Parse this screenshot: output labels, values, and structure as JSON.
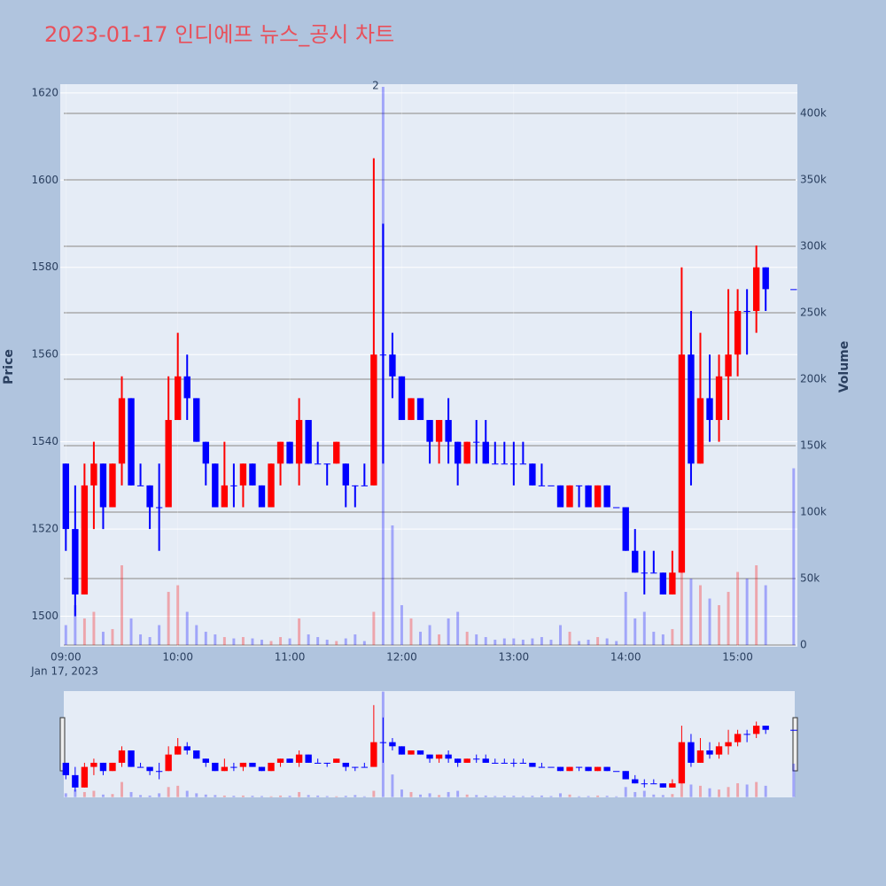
{
  "chart_data": {
    "type": "candlestick",
    "title": "2023-01-17 인디에프 뉴스_공시 차트",
    "y_label": "Price",
    "y2_label": "Volume",
    "x_date_label": "Jan 17, 2023",
    "increasing_color": "#ff0000",
    "decreasing_color": "#0000ff",
    "annotations": [
      {
        "text": "2",
        "x": "2023-01-17 11:46"
      }
    ],
    "xlim": [
      "2023-01-17 08:57",
      "2023-01-17 15:32"
    ],
    "xticks": [
      {
        "value": "2023-01-17 09:00",
        "label": "09:00"
      },
      {
        "value": "2023-01-17 10:00",
        "label": "10:00"
      },
      {
        "value": "2023-01-17 11:00",
        "label": "11:00"
      },
      {
        "value": "2023-01-17 12:00",
        "label": "12:00"
      },
      {
        "value": "2023-01-17 13:00",
        "label": "13:00"
      },
      {
        "value": "2023-01-17 14:00",
        "label": "14:00"
      },
      {
        "value": "2023-01-17 15:00",
        "label": "15:00"
      }
    ],
    "ylim": [
      1493,
      1622
    ],
    "yticks": [
      1500,
      1520,
      1540,
      1560,
      1580,
      1600,
      1620
    ],
    "y2lim": [
      -1300,
      422000
    ],
    "y2ticks": [
      0,
      {
        "value": 50000,
        "label": "50k"
      },
      {
        "value": 100000,
        "label": "100k"
      },
      {
        "value": 150000,
        "label": "150k"
      },
      {
        "value": 200000,
        "label": "200k"
      },
      {
        "value": 250000,
        "label": "250k"
      },
      {
        "value": 300000,
        "label": "300k"
      },
      {
        "value": 350000,
        "label": "350k"
      },
      {
        "value": 400000,
        "label": "400k"
      }
    ],
    "x": [
      "2023-01-17 09:00",
      "2023-01-17 09:05",
      "2023-01-17 09:10",
      "2023-01-17 09:15",
      "2023-01-17 09:20",
      "2023-01-17 09:25",
      "2023-01-17 09:30",
      "2023-01-17 09:35",
      "2023-01-17 09:40",
      "2023-01-17 09:45",
      "2023-01-17 09:50",
      "2023-01-17 09:55",
      "2023-01-17 10:00",
      "2023-01-17 10:05",
      "2023-01-17 10:10",
      "2023-01-17 10:15",
      "2023-01-17 10:20",
      "2023-01-17 10:25",
      "2023-01-17 10:30",
      "2023-01-17 10:35",
      "2023-01-17 10:40",
      "2023-01-17 10:45",
      "2023-01-17 10:50",
      "2023-01-17 10:55",
      "2023-01-17 11:00",
      "2023-01-17 11:05",
      "2023-01-17 11:10",
      "2023-01-17 11:15",
      "2023-01-17 11:20",
      "2023-01-17 11:25",
      "2023-01-17 11:30",
      "2023-01-17 11:35",
      "2023-01-17 11:40",
      "2023-01-17 11:45",
      "2023-01-17 11:50",
      "2023-01-17 11:55",
      "2023-01-17 12:00",
      "2023-01-17 12:05",
      "2023-01-17 12:10",
      "2023-01-17 12:15",
      "2023-01-17 12:20",
      "2023-01-17 12:25",
      "2023-01-17 12:30",
      "2023-01-17 12:35",
      "2023-01-17 12:40",
      "2023-01-17 12:45",
      "2023-01-17 12:50",
      "2023-01-17 12:55",
      "2023-01-17 13:00",
      "2023-01-17 13:05",
      "2023-01-17 13:10",
      "2023-01-17 13:15",
      "2023-01-17 13:20",
      "2023-01-17 13:25",
      "2023-01-17 13:30",
      "2023-01-17 13:35",
      "2023-01-17 13:40",
      "2023-01-17 13:45",
      "2023-01-17 13:50",
      "2023-01-17 13:55",
      "2023-01-17 14:00",
      "2023-01-17 14:05",
      "2023-01-17 14:10",
      "2023-01-17 14:15",
      "2023-01-17 14:20",
      "2023-01-17 14:25",
      "2023-01-17 14:30",
      "2023-01-17 14:35",
      "2023-01-17 14:40",
      "2023-01-17 14:45",
      "2023-01-17 14:50",
      "2023-01-17 14:55",
      "2023-01-17 15:00",
      "2023-01-17 15:05",
      "2023-01-17 15:10",
      "2023-01-17 15:15",
      "2023-01-17 15:30"
    ],
    "open": [
      1535,
      1520,
      1505,
      1530,
      1535,
      1525,
      1535,
      1550,
      1530,
      1530,
      1525,
      1525,
      1545,
      1555,
      1550,
      1540,
      1535,
      1525,
      1530,
      1530,
      1535,
      1530,
      1525,
      1535,
      1540,
      1535,
      1545,
      1535,
      1535,
      1535,
      1535,
      1530,
      1530,
      1530,
      1560,
      1560,
      1555,
      1545,
      1550,
      1545,
      1540,
      1545,
      1540,
      1535,
      1540,
      1540,
      1535,
      1535,
      1535,
      1535,
      1535,
      1530,
      1530,
      1530,
      1525,
      1530,
      1530,
      1525,
      1530,
      1525,
      1525,
      1515,
      1510,
      1510,
      1510,
      1505,
      1510,
      1560,
      1535,
      1550,
      1545,
      1555,
      1560,
      1570,
      1570,
      1580,
      1575
    ],
    "high": [
      1535,
      1530,
      1535,
      1540,
      1535,
      1535,
      1555,
      1550,
      1535,
      1530,
      1535,
      1555,
      1565,
      1560,
      1550,
      1540,
      1535,
      1540,
      1535,
      1535,
      1535,
      1530,
      1535,
      1540,
      1540,
      1550,
      1545,
      1540,
      1535,
      1540,
      1535,
      1530,
      1535,
      1605,
      1590,
      1565,
      1555,
      1550,
      1550,
      1545,
      1545,
      1550,
      1540,
      1540,
      1545,
      1545,
      1540,
      1540,
      1540,
      1540,
      1535,
      1535,
      1530,
      1530,
      1530,
      1530,
      1530,
      1530,
      1530,
      1525,
      1525,
      1520,
      1515,
      1515,
      1510,
      1515,
      1580,
      1570,
      1565,
      1560,
      1560,
      1575,
      1575,
      1575,
      1585,
      1580,
      1575
    ],
    "low": [
      1515,
      1500,
      1505,
      1520,
      1520,
      1525,
      1530,
      1530,
      1530,
      1520,
      1515,
      1525,
      1545,
      1545,
      1540,
      1530,
      1525,
      1525,
      1525,
      1525,
      1530,
      1525,
      1525,
      1530,
      1535,
      1530,
      1535,
      1535,
      1530,
      1535,
      1525,
      1525,
      1530,
      1530,
      1535,
      1550,
      1545,
      1545,
      1545,
      1535,
      1535,
      1535,
      1530,
      1535,
      1535,
      1535,
      1535,
      1535,
      1530,
      1535,
      1530,
      1530,
      1530,
      1525,
      1525,
      1525,
      1525,
      1525,
      1525,
      1525,
      1515,
      1510,
      1505,
      1510,
      1505,
      1505,
      1510,
      1530,
      1535,
      1540,
      1540,
      1545,
      1555,
      1560,
      1565,
      1570,
      1575
    ],
    "close": [
      1520,
      1505,
      1530,
      1535,
      1525,
      1535,
      1550,
      1530,
      1530,
      1525,
      1525,
      1545,
      1555,
      1550,
      1540,
      1535,
      1525,
      1530,
      1530,
      1535,
      1530,
      1525,
      1535,
      1540,
      1535,
      1545,
      1535,
      1535,
      1535,
      1540,
      1530,
      1530,
      1530,
      1560,
      1560,
      1555,
      1545,
      1550,
      1545,
      1540,
      1545,
      1540,
      1535,
      1540,
      1540,
      1535,
      1535,
      1535,
      1535,
      1535,
      1530,
      1530,
      1530,
      1525,
      1530,
      1530,
      1525,
      1530,
      1525,
      1525,
      1515,
      1510,
      1510,
      1510,
      1505,
      1510,
      1560,
      1535,
      1550,
      1545,
      1555,
      1560,
      1570,
      1570,
      1580,
      1575,
      1575
    ],
    "volume": [
      15000,
      30000,
      20000,
      25000,
      10000,
      12000,
      60000,
      20000,
      8000,
      6000,
      15000,
      40000,
      45000,
      25000,
      15000,
      10000,
      8000,
      6000,
      5000,
      6000,
      5000,
      4000,
      3000,
      6000,
      5000,
      20000,
      8000,
      6000,
      4000,
      3000,
      5000,
      8000,
      3000,
      25000,
      420000,
      90000,
      30000,
      20000,
      10000,
      15000,
      8000,
      20000,
      25000,
      10000,
      8000,
      6000,
      4000,
      5000,
      5000,
      4000,
      5000,
      6000,
      4000,
      15000,
      10000,
      3000,
      4000,
      6000,
      5000,
      3000,
      40000,
      20000,
      25000,
      10000,
      8000,
      12000,
      70000,
      50000,
      45000,
      35000,
      30000,
      40000,
      55000,
      50000,
      60000,
      45000,
      133000
    ]
  }
}
